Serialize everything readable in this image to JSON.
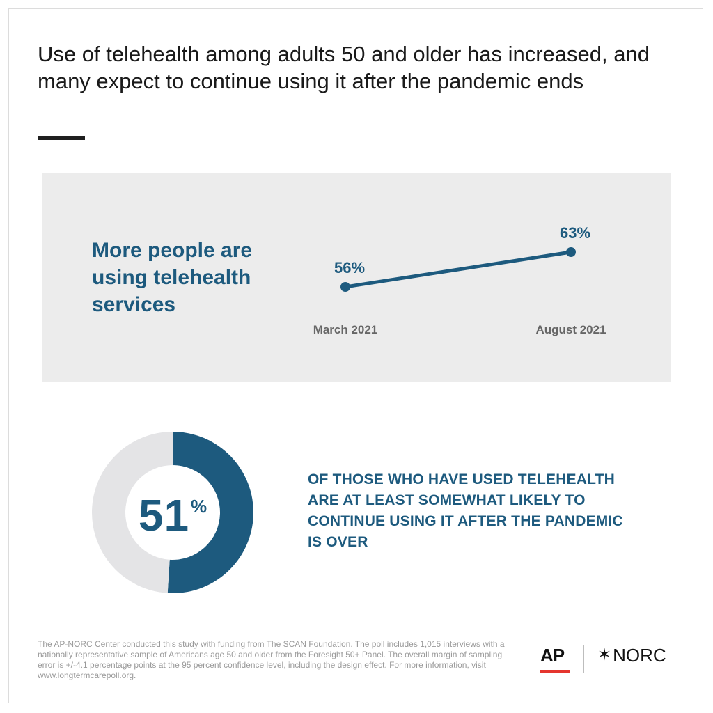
{
  "title": "Use of telehealth among adults 50 and older has increased, and many expect to continue using it after the pandemic ends",
  "panel": {
    "heading": "More people are using telehealth services"
  },
  "chart_data": [
    {
      "type": "line",
      "categories": [
        "March 2021",
        "August 2021"
      ],
      "series": [
        {
          "values": [
            56,
            63
          ],
          "labels": [
            "56%",
            "63%"
          ],
          "color": "#1d5a7e"
        }
      ],
      "title": "",
      "xlabel": "",
      "ylabel": "",
      "grid": false
    },
    {
      "type": "pie",
      "values": [
        51,
        49
      ],
      "slices": [
        {
          "value": 51,
          "color": "#1d5a7e"
        },
        {
          "value": 49,
          "color": "#e4e4e6"
        }
      ],
      "center_value": "51",
      "center_unit": "%"
    }
  ],
  "stat": {
    "text": "OF THOSE WHO HAVE USED TELEHEALTH ARE AT LEAST SOMEWHAT LIKELY TO CONTINUE USING IT AFTER THE PANDEMIC IS OVER"
  },
  "footnote": "The AP-NORC Center conducted this study with funding from The SCAN Foundation. The poll includes 1,015 interviews with a nationally representative sample of Americans age 50 and older from the Foresight 50+ Panel. The overall margin of sampling error is +/-4.1 percentage points at the 95 percent confidence level, including the design effect. For more information, visit www.longtermcarepoll.org.",
  "logos": {
    "ap": "AP",
    "norc_star": "✶",
    "norc": "NORC"
  },
  "colors": {
    "accent": "#1d5a7e",
    "panel": "#ececec",
    "donut_rest": "#e4e4e6",
    "ap_red": "#e5352e"
  }
}
